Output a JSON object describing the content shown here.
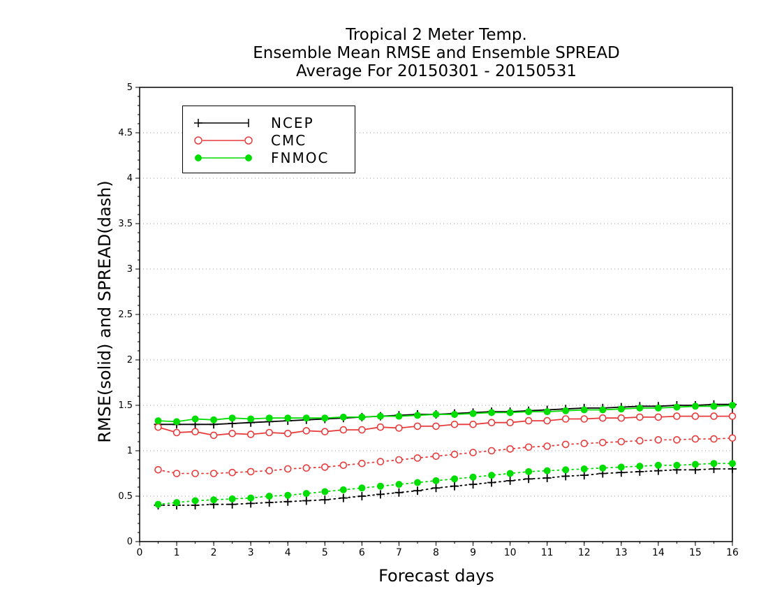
{
  "title": {
    "line1": "Tropical 2 Meter Temp.",
    "line2": "Ensemble Mean RMSE and Ensemble SPREAD",
    "line3": "Average For 20150301 - 20150531"
  },
  "chart_data": {
    "type": "line",
    "xlabel": "Forecast days",
    "ylabel": "RMSE(solid) and SPREAD(dash)",
    "xlim": [
      0,
      16
    ],
    "ylim": [
      0,
      5
    ],
    "x_ticks": [
      0,
      1,
      2,
      3,
      4,
      5,
      6,
      7,
      8,
      9,
      10,
      11,
      12,
      13,
      14,
      15,
      16
    ],
    "y_ticks": [
      0,
      0.5,
      1,
      1.5,
      2,
      2.5,
      3,
      3.5,
      4,
      4.5,
      5
    ],
    "y_tick_labels": [
      "0",
      "0.5",
      "1",
      "1.5",
      "2",
      "2.5",
      "3",
      "3.5",
      "4",
      "4.5",
      "5"
    ],
    "grid": "horizontal dotted",
    "legend_position": "top-left",
    "x": [
      0.5,
      1,
      1.5,
      2,
      2.5,
      3,
      3.5,
      4,
      4.5,
      5,
      5.5,
      6,
      6.5,
      7,
      7.5,
      8,
      8.5,
      9,
      9.5,
      10,
      10.5,
      11,
      11.5,
      12,
      12.5,
      13,
      13.5,
      14,
      14.5,
      15,
      15.5,
      16
    ],
    "series": [
      {
        "name": "NCEP",
        "color": "#000000",
        "marker": "plus",
        "rmse": [
          1.29,
          1.29,
          1.29,
          1.29,
          1.3,
          1.31,
          1.32,
          1.33,
          1.34,
          1.35,
          1.36,
          1.37,
          1.38,
          1.39,
          1.4,
          1.4,
          1.41,
          1.42,
          1.43,
          1.43,
          1.44,
          1.45,
          1.46,
          1.47,
          1.47,
          1.48,
          1.49,
          1.49,
          1.5,
          1.5,
          1.51,
          1.51
        ],
        "spread": [
          0.4,
          0.4,
          0.4,
          0.41,
          0.41,
          0.42,
          0.43,
          0.44,
          0.45,
          0.46,
          0.48,
          0.5,
          0.52,
          0.54,
          0.56,
          0.59,
          0.61,
          0.63,
          0.65,
          0.67,
          0.69,
          0.7,
          0.72,
          0.73,
          0.75,
          0.76,
          0.77,
          0.78,
          0.79,
          0.79,
          0.8,
          0.8
        ]
      },
      {
        "name": "CMC",
        "color": "#e83c3c",
        "marker": "open-circle",
        "rmse": [
          1.26,
          1.2,
          1.21,
          1.17,
          1.19,
          1.18,
          1.2,
          1.19,
          1.22,
          1.21,
          1.23,
          1.23,
          1.26,
          1.25,
          1.27,
          1.27,
          1.29,
          1.29,
          1.31,
          1.31,
          1.33,
          1.33,
          1.35,
          1.35,
          1.36,
          1.36,
          1.37,
          1.37,
          1.38,
          1.38,
          1.38,
          1.38
        ],
        "spread": [
          0.79,
          0.75,
          0.75,
          0.75,
          0.76,
          0.77,
          0.78,
          0.8,
          0.81,
          0.82,
          0.84,
          0.86,
          0.88,
          0.9,
          0.92,
          0.94,
          0.96,
          0.98,
          1.0,
          1.02,
          1.04,
          1.05,
          1.07,
          1.08,
          1.09,
          1.1,
          1.11,
          1.12,
          1.12,
          1.13,
          1.13,
          1.14
        ]
      },
      {
        "name": "FNMOC",
        "color": "#00dd00",
        "marker": "filled-circle",
        "rmse": [
          1.33,
          1.32,
          1.35,
          1.34,
          1.36,
          1.35,
          1.36,
          1.36,
          1.36,
          1.36,
          1.37,
          1.37,
          1.38,
          1.38,
          1.39,
          1.4,
          1.4,
          1.41,
          1.42,
          1.42,
          1.43,
          1.43,
          1.44,
          1.45,
          1.45,
          1.46,
          1.47,
          1.47,
          1.48,
          1.49,
          1.49,
          1.5
        ],
        "spread": [
          0.41,
          0.43,
          0.45,
          0.46,
          0.47,
          0.48,
          0.5,
          0.51,
          0.53,
          0.55,
          0.57,
          0.59,
          0.61,
          0.63,
          0.65,
          0.67,
          0.69,
          0.71,
          0.73,
          0.75,
          0.77,
          0.78,
          0.79,
          0.8,
          0.81,
          0.82,
          0.83,
          0.84,
          0.84,
          0.85,
          0.86,
          0.86
        ]
      }
    ]
  }
}
